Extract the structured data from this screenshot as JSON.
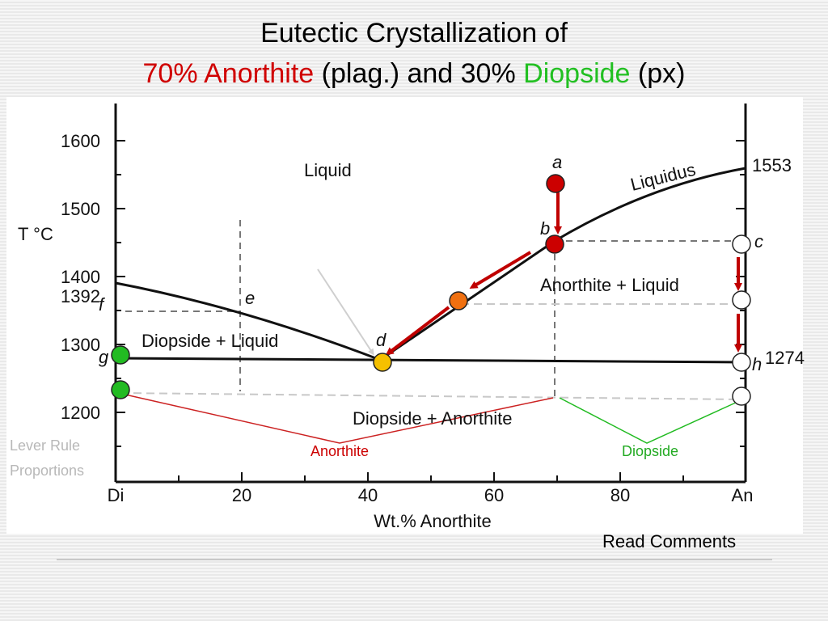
{
  "slide": {
    "title_line1": "Eutectic Crystallization of",
    "title_line2": {
      "pct_an": "70% Anorthite",
      "plag": "(plag.) and 30%",
      "diopside": "Diopside",
      "px": "(px)"
    },
    "footer": "Read Comments"
  },
  "diagram": {
    "y_axis_label": "T °C",
    "x_axis_label": "Wt.% Anorthite",
    "y_ticks": [
      "1600",
      "1500",
      "1400",
      "1300",
      "1200"
    ],
    "x_ticks": [
      "Di",
      "20",
      "40",
      "60",
      "80",
      "An"
    ],
    "special_temps": {
      "left": "1392",
      "right_top": "1553",
      "right_eutectic": "1274"
    },
    "field_labels": {
      "liquid": "Liquid",
      "liquidus": "Liquidus",
      "an_liquid": "Anorthite + Liquid",
      "di_liquid": "Diopside + Liquid",
      "di_an": "Diopside + Anorthite"
    },
    "point_labels": {
      "a": "a",
      "b": "b",
      "c": "c",
      "d": "d",
      "e": "e",
      "f": "f",
      "g": "g",
      "h": "h"
    },
    "lever_rule_label1": "Lever Rule",
    "lever_rule_label2": "Proportions",
    "anorthite_label": "Anorthite",
    "diopside_label": "Diopside",
    "colors": {
      "red_marker": "#cc0000",
      "orange_marker": "#f07010",
      "yellow_marker": "#f5c000",
      "green_marker": "#22bb22",
      "arrow": "#c00000",
      "green_line": "#22bb22"
    }
  }
}
